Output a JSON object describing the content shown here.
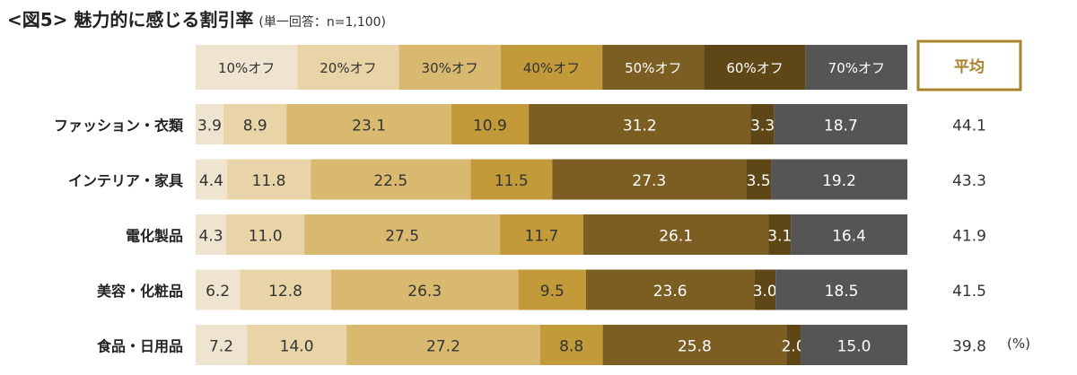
{
  "header": {
    "title": "<図5> 魅力的に感じる割引率",
    "subtitle": "(単一回答：n=1,100)"
  },
  "unit_label": "(%)",
  "chart_data": {
    "type": "bar",
    "orientation": "horizontal",
    "stacked": true,
    "normalized": true,
    "legend_position": "top",
    "categories": [
      "ファッション・衣類",
      "インテリア・家具",
      "電化製品",
      "美容・化粧品",
      "食品・日用品"
    ],
    "series": [
      {
        "name": "10%オフ",
        "color": "#efe4cf",
        "values": [
          3.9,
          4.4,
          4.3,
          6.2,
          7.2
        ]
      },
      {
        "name": "20%オフ",
        "color": "#e8d4a6",
        "values": [
          8.9,
          11.8,
          11.0,
          12.8,
          14.0
        ]
      },
      {
        "name": "30%オフ",
        "color": "#d9b96f",
        "values": [
          23.1,
          22.5,
          27.5,
          26.3,
          27.2
        ]
      },
      {
        "name": "40%オフ",
        "color": "#c29a39",
        "values": [
          10.9,
          11.5,
          11.7,
          9.5,
          8.8
        ]
      },
      {
        "name": "50%オフ",
        "color": "#7d5e22",
        "values": [
          31.2,
          27.3,
          26.1,
          23.6,
          25.8
        ]
      },
      {
        "name": "60%オフ",
        "color": "#5e4616",
        "values": [
          3.3,
          3.5,
          3.1,
          3.0,
          2.0
        ]
      },
      {
        "name": "70%オフ",
        "color": "#555555",
        "values": [
          18.7,
          19.2,
          16.4,
          18.5,
          15.0
        ]
      }
    ],
    "average": {
      "label": "平均",
      "values": [
        "44.1",
        "43.3",
        "41.9",
        "41.5",
        "39.8"
      ],
      "color": "#a8842e"
    }
  }
}
